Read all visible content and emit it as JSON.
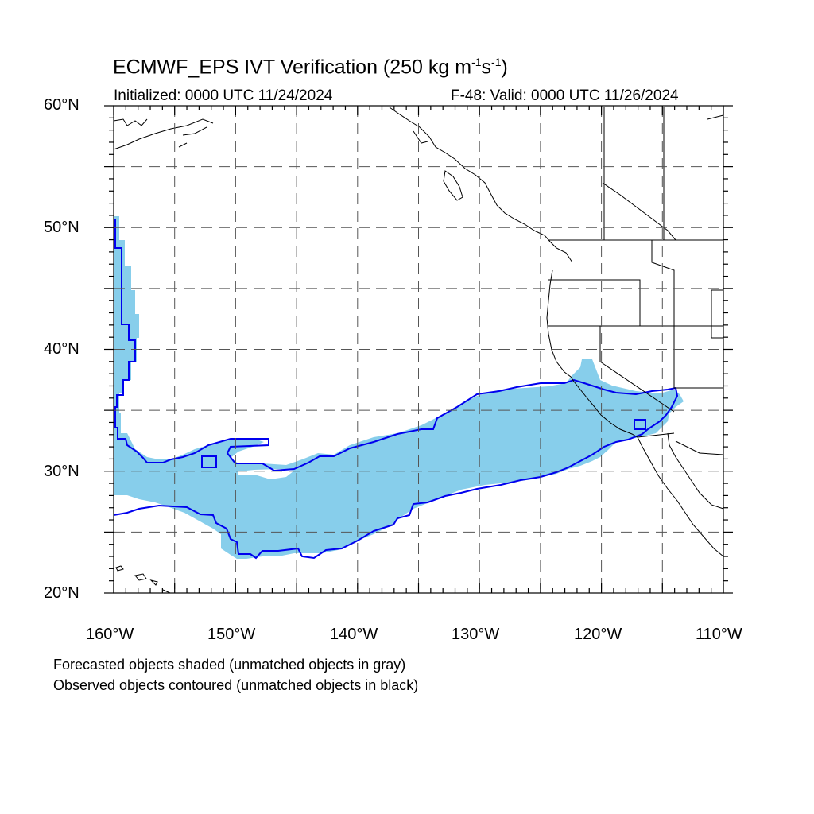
{
  "title": {
    "main": "ECMWF_EPS IVT Verification (250 kg m",
    "exp1": "-1",
    "mid": "s",
    "exp2": "-1",
    "close": ")"
  },
  "initialized": "Initialized: 0000 UTC 11/24/2024",
  "valid": "F-48: Valid: 0000 UTC 11/26/2024",
  "lat_labels": [
    "60°N",
    "50°N",
    "40°N",
    "30°N",
    "20°N"
  ],
  "lon_labels": [
    "160°W",
    "150°W",
    "140°W",
    "130°W",
    "120°W",
    "110°W"
  ],
  "notes": {
    "forecast": "Forecasted objects shaded (unmatched objects in gray)",
    "observed": "Observed objects contoured (unmatched objects in black)"
  },
  "colors": {
    "forecast_fill": "#87ceeb",
    "observed_contour": "#0000ee",
    "coastline": "#000000",
    "grid": "#555555"
  },
  "map": {
    "extent": {
      "lon_min": -160,
      "lon_max": -110,
      "lat_min": 20,
      "lat_max": 60
    },
    "grid_spacing_deg": 5,
    "grid_style": "dashed"
  }
}
